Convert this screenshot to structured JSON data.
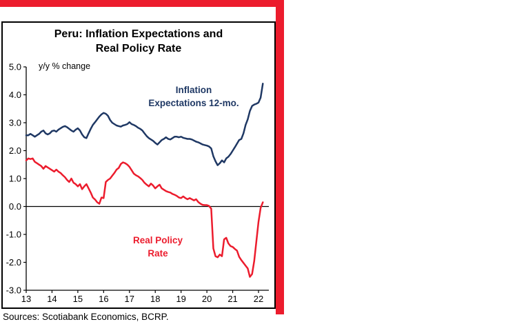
{
  "header": {
    "title_line1": "Peru: Inflation Expectations and",
    "title_line2": "Real Policy Rate"
  },
  "labels": {
    "axis_note": "y/y % change",
    "inflation_line1": "Inflation",
    "inflation_line2": "Expectations 12-mo.",
    "real_line1": "Real Policy",
    "real_line2": "Rate"
  },
  "footer": {
    "sources": "Sources: Scotiabank Economics, BCRP."
  },
  "colors": {
    "accent_red": "#ec1c2d",
    "line_blue": "#1f3864",
    "line_red": "#ec1c2d",
    "axis_black": "#000000"
  },
  "chart_data": {
    "type": "line",
    "title": "Peru: Inflation Expectations and Real Policy Rate",
    "axis_note": "y/y % change",
    "xlabel": "",
    "ylabel": "",
    "xlim": [
      2013,
      2022.4
    ],
    "ylim": [
      -3.0,
      5.0
    ],
    "grid": false,
    "legend_position": "inline-labels",
    "x_ticks": [
      2013,
      2014,
      2015,
      2016,
      2017,
      2018,
      2019,
      2020,
      2021,
      2022
    ],
    "x_tick_labels": [
      "13",
      "14",
      "15",
      "16",
      "17",
      "18",
      "19",
      "20",
      "21",
      "22"
    ],
    "y_ticks": [
      5,
      4,
      3,
      2,
      1,
      0,
      -1,
      -2,
      -3
    ],
    "y_tick_labels": [
      "5.0",
      "4.0",
      "3.0",
      "2.0",
      "1.0",
      "0.0",
      "-1.0",
      "-2.0",
      "-3.0"
    ],
    "x_start": 2013.0,
    "x_step_months": 1,
    "series": [
      {
        "name": "Inflation Expectations 12-mo.",
        "color": "#1f3864",
        "values": [
          2.55,
          2.55,
          2.6,
          2.55,
          2.5,
          2.55,
          2.6,
          2.68,
          2.72,
          2.62,
          2.58,
          2.62,
          2.7,
          2.72,
          2.68,
          2.75,
          2.8,
          2.85,
          2.88,
          2.84,
          2.78,
          2.72,
          2.68,
          2.75,
          2.8,
          2.72,
          2.58,
          2.48,
          2.45,
          2.62,
          2.78,
          2.92,
          3.02,
          3.12,
          3.22,
          3.3,
          3.35,
          3.32,
          3.25,
          3.1,
          3.0,
          2.95,
          2.9,
          2.88,
          2.86,
          2.9,
          2.92,
          2.95,
          3.02,
          2.95,
          2.92,
          2.88,
          2.82,
          2.78,
          2.72,
          2.62,
          2.52,
          2.45,
          2.4,
          2.35,
          2.28,
          2.22,
          2.3,
          2.38,
          2.42,
          2.48,
          2.42,
          2.4,
          2.45,
          2.5,
          2.5,
          2.48,
          2.5,
          2.46,
          2.44,
          2.42,
          2.42,
          2.4,
          2.36,
          2.32,
          2.3,
          2.26,
          2.22,
          2.2,
          2.18,
          2.15,
          2.08,
          1.8,
          1.62,
          1.48,
          1.55,
          1.65,
          1.58,
          1.72,
          1.78,
          1.88,
          2.0,
          2.12,
          2.25,
          2.38,
          2.42,
          2.62,
          2.92,
          3.12,
          3.42,
          3.6,
          3.65,
          3.68,
          3.72,
          3.9,
          4.4
        ]
      },
      {
        "name": "Real Policy Rate",
        "color": "#ec1c2d",
        "values": [
          1.65,
          1.72,
          1.7,
          1.72,
          1.6,
          1.55,
          1.5,
          1.45,
          1.35,
          1.45,
          1.4,
          1.35,
          1.3,
          1.25,
          1.32,
          1.25,
          1.2,
          1.12,
          1.05,
          0.95,
          0.88,
          1.0,
          0.85,
          0.8,
          0.72,
          0.8,
          0.62,
          0.72,
          0.8,
          0.65,
          0.5,
          0.32,
          0.25,
          0.15,
          0.1,
          0.32,
          0.3,
          0.88,
          0.95,
          1.0,
          1.1,
          1.2,
          1.32,
          1.38,
          1.52,
          1.58,
          1.55,
          1.5,
          1.42,
          1.3,
          1.18,
          1.12,
          1.08,
          1.02,
          0.95,
          0.85,
          0.78,
          0.72,
          0.82,
          0.75,
          0.65,
          0.72,
          0.78,
          0.65,
          0.6,
          0.55,
          0.52,
          0.5,
          0.45,
          0.42,
          0.38,
          0.32,
          0.3,
          0.36,
          0.3,
          0.26,
          0.3,
          0.26,
          0.22,
          0.26,
          0.16,
          0.1,
          0.06,
          0.05,
          0.05,
          0.02,
          -0.08,
          -1.5,
          -1.78,
          -1.82,
          -1.72,
          -1.78,
          -1.18,
          -1.12,
          -1.32,
          -1.42,
          -1.45,
          -1.52,
          -1.58,
          -1.8,
          -1.92,
          -2.02,
          -2.12,
          -2.22,
          -2.52,
          -2.42,
          -1.95,
          -1.25,
          -0.55,
          -0.05,
          0.15
        ]
      }
    ]
  }
}
